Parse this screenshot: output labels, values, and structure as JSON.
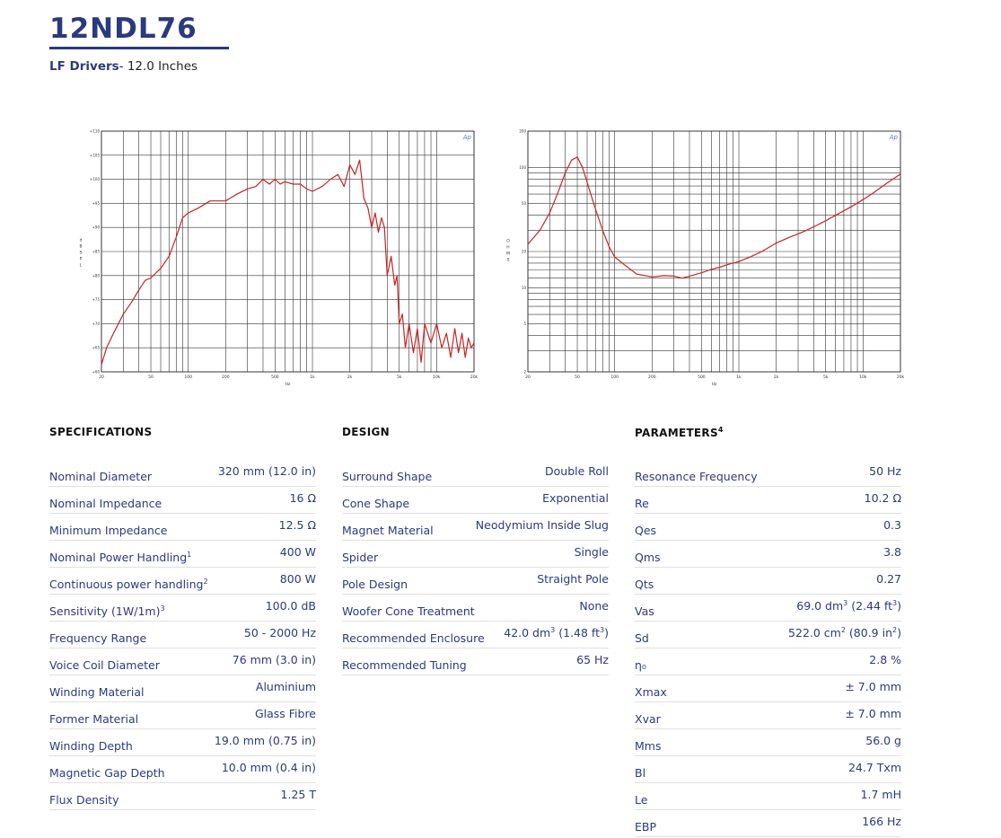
{
  "header": {
    "model": "12NDL76",
    "category": "LF Drivers",
    "size": "- 12.0 Inches"
  },
  "spl_chart": {
    "logo": "Ap",
    "y_axis_label": "dB SPL",
    "x_axis_label": "Hz",
    "y_ticks": [
      "+110",
      "+105",
      "+100",
      "+95",
      "+90",
      "+85",
      "+80",
      "+75",
      "+70",
      "+65",
      "+60"
    ],
    "x_ticks": [
      "20",
      "50",
      "100",
      "200",
      "500",
      "1k",
      "2k",
      "5k",
      "10k",
      "20k"
    ]
  },
  "imp_chart": {
    "logo": "Ap",
    "y_axis_label": "OHMS",
    "x_axis_label": "Hz",
    "y_ticks": [
      "200",
      "100",
      "50",
      "20",
      "10",
      "5",
      "2"
    ],
    "x_ticks": [
      "20",
      "50",
      "100",
      "200",
      "500",
      "1k",
      "2k",
      "5k",
      "10k",
      "20k"
    ]
  },
  "chart_data": [
    {
      "type": "line",
      "title": "",
      "xlabel": "Hz",
      "ylabel": "dB SPL",
      "xscale": "log",
      "xlim": [
        20,
        20000
      ],
      "ylim": [
        60,
        110
      ],
      "color": "#cc2222",
      "grid": true,
      "x": [
        20,
        22,
        25,
        30,
        35,
        40,
        45,
        50,
        60,
        70,
        80,
        90,
        100,
        120,
        150,
        200,
        250,
        300,
        350,
        400,
        450,
        500,
        550,
        600,
        700,
        800,
        900,
        1000,
        1200,
        1400,
        1600,
        1800,
        2000,
        2200,
        2400,
        2600,
        2800,
        3000,
        3200,
        3400,
        3600,
        3800,
        4000,
        4300,
        4600,
        4800,
        5000,
        5300,
        5600,
        6000,
        6500,
        7000,
        7500,
        8000,
        9000,
        10000,
        11000,
        12000,
        13000,
        14000,
        15000,
        16000,
        17000,
        18000,
        19000,
        20000
      ],
      "y": [
        61.5,
        65,
        68,
        72,
        74.5,
        77,
        79,
        79.5,
        81.5,
        84,
        88,
        92,
        93,
        94,
        95.5,
        95.5,
        97,
        98,
        98.5,
        100,
        99,
        100,
        99,
        99.5,
        99,
        99,
        98,
        97.5,
        98.5,
        100,
        101,
        98.5,
        103,
        101,
        104,
        96,
        94,
        90,
        93,
        89,
        92,
        90,
        80,
        84,
        78,
        80,
        70,
        72,
        65,
        70,
        64,
        69,
        62,
        70,
        66,
        70,
        65,
        68,
        63,
        69,
        64,
        68,
        63,
        67,
        65,
        66
      ]
    },
    {
      "type": "line",
      "title": "",
      "xlabel": "Hz",
      "ylabel": "OHMS",
      "xscale": "log",
      "yscale": "log",
      "xlim": [
        20,
        20000
      ],
      "ylim": [
        2,
        200
      ],
      "color": "#cc2222",
      "grid": true,
      "x": [
        20,
        25,
        30,
        35,
        40,
        45,
        50,
        55,
        60,
        70,
        80,
        90,
        100,
        120,
        150,
        200,
        250,
        300,
        350,
        400,
        500,
        600,
        700,
        800,
        1000,
        1200,
        1500,
        2000,
        2500,
        3000,
        3500,
        4000,
        5000,
        6000,
        8000,
        10000,
        12000,
        15000,
        20000
      ],
      "y": [
        23,
        30,
        42,
        62,
        90,
        115,
        122,
        100,
        75,
        45,
        30,
        22,
        18,
        15.5,
        13,
        12.3,
        12.6,
        12.5,
        12,
        12.5,
        13.3,
        14.2,
        14.8,
        15.5,
        16.5,
        17.8,
        19.8,
        23.5,
        26,
        28,
        30,
        32,
        36,
        40,
        47,
        54,
        61,
        72,
        88
      ]
    }
  ],
  "specifications": {
    "title": "SPECIFICATIONS",
    "rows": [
      {
        "label": "Nominal Diameter",
        "value": "320 mm (12.0 in)"
      },
      {
        "label": "Nominal Impedance",
        "value": "16 Ω"
      },
      {
        "label": "Minimum Impedance",
        "value": "12.5 Ω"
      },
      {
        "label": "Nominal Power Handling",
        "sup": "1",
        "value": "400 W"
      },
      {
        "label": "Continuous power handling",
        "sup": "2",
        "value": "800 W"
      },
      {
        "label": "Sensitivity (1W/1m)",
        "sup": "3",
        "value": "100.0 dB"
      },
      {
        "label": "Frequency Range",
        "value": "50 - 2000 Hz"
      },
      {
        "label": "Voice Coil Diameter",
        "value": "76 mm (3.0 in)"
      },
      {
        "label": "Winding Material",
        "value": "Aluminium"
      },
      {
        "label": "Former Material",
        "value": "Glass Fibre"
      },
      {
        "label": "Winding Depth",
        "value": "19.0 mm (0.75 in)"
      },
      {
        "label": "Magnetic Gap Depth",
        "value": "10.0 mm (0.4 in)"
      },
      {
        "label": "Flux Density",
        "value": "1.25 T"
      }
    ]
  },
  "design": {
    "title": "DESIGN",
    "rows": [
      {
        "label": "Surround Shape",
        "value": "Double Roll"
      },
      {
        "label": "Cone Shape",
        "value": "Exponential"
      },
      {
        "label": "Magnet Material",
        "value": "Neodymium Inside Slug"
      },
      {
        "label": "Spider",
        "value": "Single"
      },
      {
        "label": "Pole Design",
        "value": "Straight Pole"
      },
      {
        "label": "Woofer Cone Treatment",
        "value": "None"
      },
      {
        "label": "Recommended Enclosure",
        "value": "42.0 dm",
        "value_sup": "3",
        "value_mid": " (1.48 ft",
        "value_sup2": "3",
        "value_end": ")"
      },
      {
        "label": "Recommended Tuning",
        "value": "65 Hz"
      }
    ]
  },
  "parameters": {
    "title": "PARAMETERS",
    "title_sup": "4",
    "rows": [
      {
        "label": "Resonance Frequency",
        "value": "50 Hz"
      },
      {
        "label": "Re",
        "value": "10.2 Ω"
      },
      {
        "label": "Qes",
        "value": "0.3"
      },
      {
        "label": "Qms",
        "value": "3.8"
      },
      {
        "label": "Qts",
        "value": "0.27"
      },
      {
        "label": "Vas",
        "value": "69.0 dm",
        "value_sup": "3",
        "value_mid": " (2.44 ft",
        "value_sup2": "3",
        "value_end": ")"
      },
      {
        "label": "Sd",
        "value": "522.0 cm",
        "value_sup": "2",
        "value_mid": " (80.9 in",
        "value_sup2": "2",
        "value_end": ")"
      },
      {
        "label": "η₀",
        "value": "2.8 %"
      },
      {
        "label": "Xmax",
        "value": "± 7.0 mm"
      },
      {
        "label": "Xvar",
        "value": "± 7.0 mm"
      },
      {
        "label": "Mms",
        "value": "56.0 g"
      },
      {
        "label": "Bl",
        "value": "24.7 Txm"
      },
      {
        "label": "Le",
        "value": "1.7 mH"
      },
      {
        "label": "EBP",
        "value": "166 Hz"
      }
    ]
  }
}
